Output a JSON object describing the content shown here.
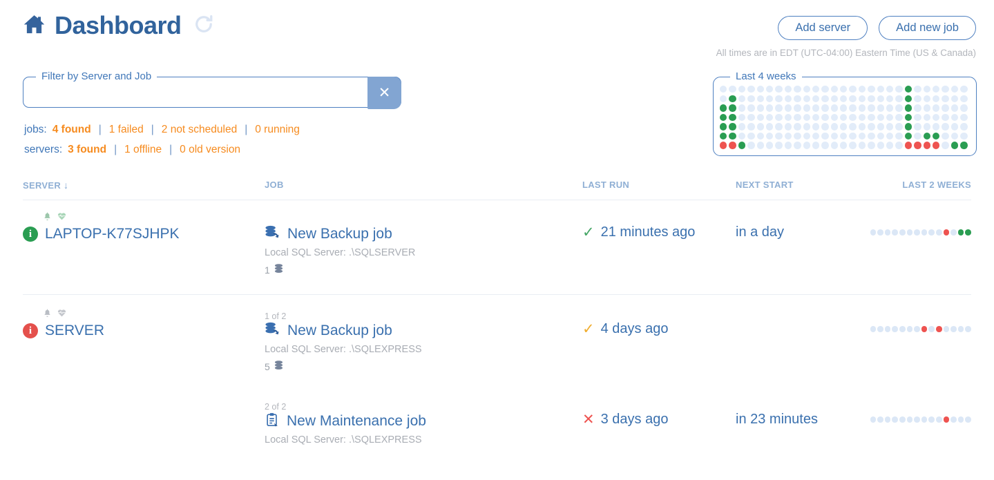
{
  "header": {
    "title": "Dashboard",
    "add_server_label": "Add server",
    "add_new_job_label": "Add new job",
    "timezone_note": "All times are in EDT (UTC-04:00) Eastern Time (US & Canada)"
  },
  "filter": {
    "legend": "Filter by Server and Job",
    "value": "",
    "clear_label": "✕"
  },
  "stats": {
    "jobs_label": "jobs:",
    "jobs": [
      {
        "text": "4 found"
      },
      {
        "text": "1 failed"
      },
      {
        "text": "2 not scheduled"
      },
      {
        "text": "0 running"
      }
    ],
    "servers_label": "servers:",
    "servers": [
      {
        "text": "3 found"
      },
      {
        "text": "1 offline"
      },
      {
        "text": "0 old version"
      }
    ]
  },
  "last_four_weeks": {
    "legend": "Last 4 weeks",
    "grid_rows": [
      "....................g......",
      ".g..................g......",
      "gg..................g......",
      "gg..................g......",
      "gg..................g......",
      "gg..................g.gg...",
      "rrg.................rrrr.gg"
    ]
  },
  "table": {
    "headers": {
      "server": "SERVER",
      "job": "JOB",
      "last_run": "LAST RUN",
      "next_start": "NEXT START",
      "last_2_weeks": "LAST 2 WEEKS"
    },
    "sort_icon": "↓",
    "groups": [
      {
        "server": {
          "name": "LAPTOP-K77SJHPK",
          "status": "ok"
        },
        "jobs": [
          {
            "ordinal": "",
            "title": "New Backup job",
            "type": "backup",
            "subtitle": "Local SQL Server: .\\SQLSERVER",
            "db_count": "1",
            "last_run": {
              "status": "success",
              "text": "21 minutes ago"
            },
            "next_start": "in a day",
            "last_2_weeks": "..........r.gg"
          }
        ]
      },
      {
        "server": {
          "name": "SERVER",
          "status": "error"
        },
        "jobs": [
          {
            "ordinal": "1 of 2",
            "title": "New Backup job",
            "type": "backup",
            "subtitle": "Local SQL Server: .\\SQLEXPRESS",
            "db_count": "5",
            "last_run": {
              "status": "warning",
              "text": "4 days ago"
            },
            "next_start": "",
            "last_2_weeks": ".......r.r...."
          },
          {
            "ordinal": "2 of 2",
            "title": "New Maintenance job",
            "type": "maintenance",
            "subtitle": "Local SQL Server: .\\SQLEXPRESS",
            "db_count": "",
            "last_run": {
              "status": "failed",
              "text": "3 days ago"
            },
            "next_start": "in 23 minutes",
            "last_2_weeks": "..........r..."
          }
        ]
      }
    ]
  },
  "colors": {
    "accent_blue": "#31639c",
    "link_blue": "#3a70ae",
    "header_steel": "#8fafd4",
    "orange": "#f68b1f",
    "green": "#2a9d52",
    "red": "#ee5350",
    "amber": "#f0ad2e",
    "dot_light": "#e2ecf9"
  }
}
